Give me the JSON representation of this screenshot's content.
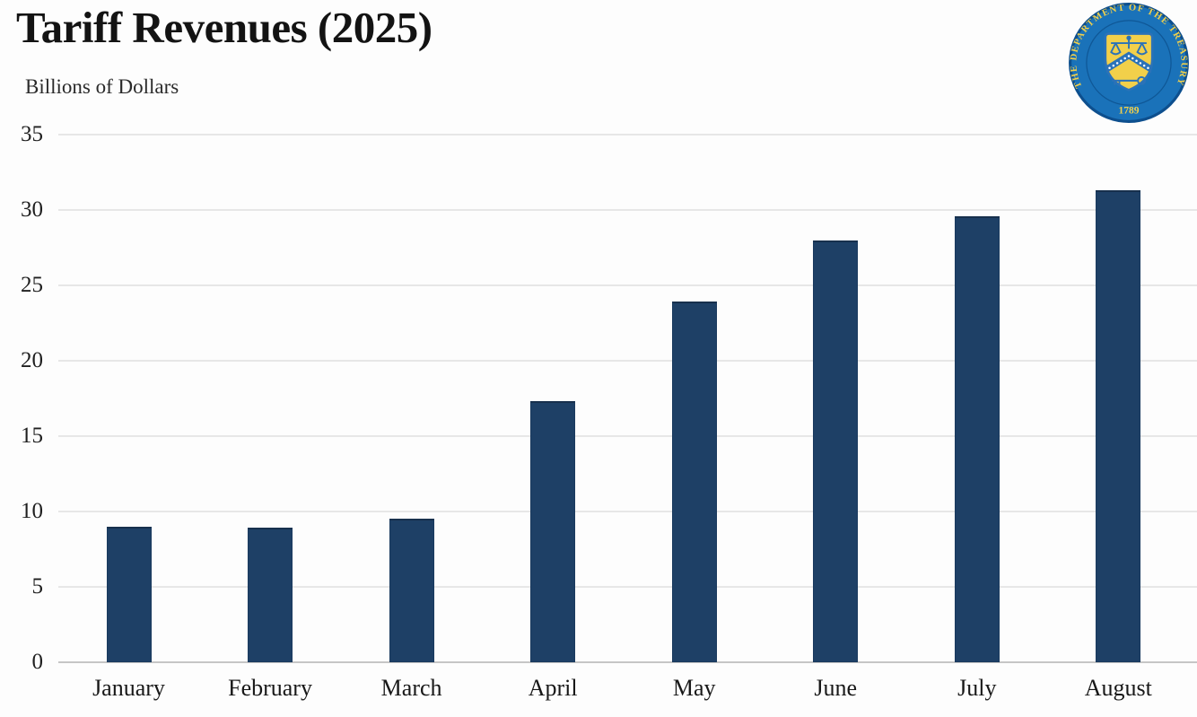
{
  "header": {
    "title": "Tariff Revenues (2025)",
    "subtitle": "Billions of Dollars"
  },
  "logo": {
    "label": "U.S. Department of the Treasury seal",
    "ring_text": "THE DEPARTMENT OF THE TREASURY",
    "year_text": "1789",
    "colors": {
      "field_blue": "#1a72b9",
      "edge_blue": "#0d4f8e",
      "gold": "#f2d04a",
      "chevron_blue": "#2b72b8"
    }
  },
  "chart_data": {
    "type": "bar",
    "title": "Tariff Revenues (2025)",
    "xlabel": "",
    "ylabel": "Billions of Dollars",
    "categories": [
      "January",
      "February",
      "March",
      "April",
      "May",
      "June",
      "July",
      "August"
    ],
    "values": [
      9.0,
      8.9,
      9.5,
      17.3,
      23.9,
      28.0,
      29.6,
      31.3
    ],
    "ylim": [
      0,
      35
    ],
    "yticks": [
      0,
      5,
      10,
      15,
      20,
      25,
      30,
      35
    ],
    "grid": true,
    "legend": "none",
    "bar_color": "#1e4066"
  }
}
